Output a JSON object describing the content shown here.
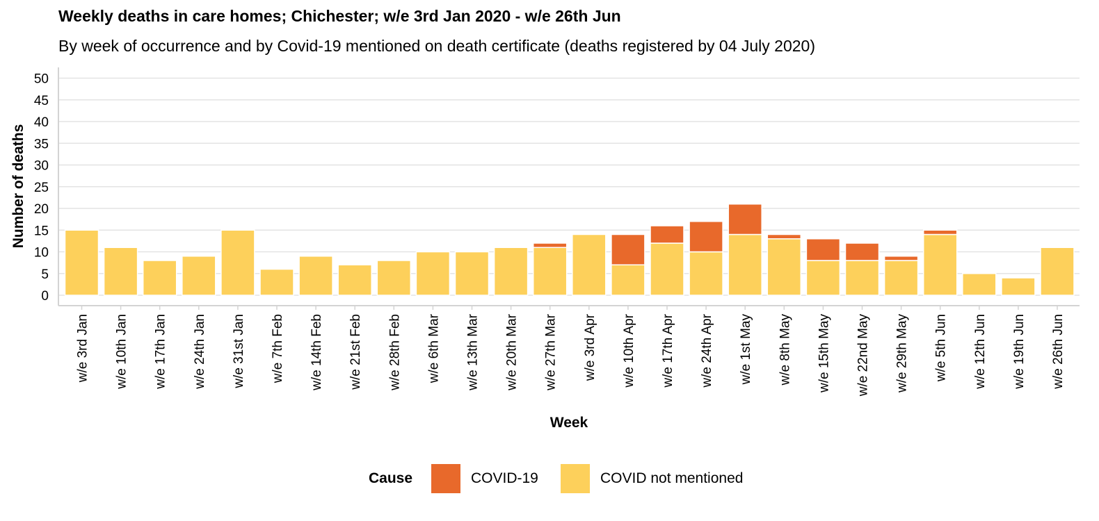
{
  "chart_data": {
    "type": "bar",
    "stacked": true,
    "title": "Weekly deaths in care homes; Chichester; w/e 3rd Jan 2020 - w/e 26th Jun",
    "subtitle": "By week of occurrence and by Covid-19 mentioned on death certificate (deaths registered by 04 July 2020)",
    "xlabel": "Week",
    "ylabel": "Number of deaths",
    "ylim": [
      0,
      50
    ],
    "yticks": [
      0,
      5,
      10,
      15,
      20,
      25,
      30,
      35,
      40,
      45,
      50
    ],
    "grid": "horizontal",
    "legend_position": "bottom",
    "legend_title": "Cause",
    "categories": [
      "w/e 3rd Jan",
      "w/e 10th Jan",
      "w/e 17th Jan",
      "w/e 24th Jan",
      "w/e 31st Jan",
      "w/e 7th Feb",
      "w/e 14th Feb",
      "w/e 21st Feb",
      "w/e 28th Feb",
      "w/e 6th Mar",
      "w/e 13th Mar",
      "w/e 20th Mar",
      "w/e 27th Mar",
      "w/e 3rd Apr",
      "w/e 10th Apr",
      "w/e 17th Apr",
      "w/e 24th Apr",
      "w/e 1st May",
      "w/e 8th May",
      "w/e 15th May",
      "w/e 22nd May",
      "w/e 29th May",
      "w/e 5th Jun",
      "w/e 12th Jun",
      "w/e 19th Jun",
      "w/e 26th Jun"
    ],
    "series": [
      {
        "name": "COVID not mentioned",
        "color": "#FDD05B",
        "values": [
          15,
          11,
          8,
          9,
          15,
          6,
          9,
          7,
          8,
          10,
          10,
          11,
          11,
          14,
          7,
          12,
          10,
          14,
          13,
          8,
          8,
          8,
          14,
          5,
          4,
          11
        ]
      },
      {
        "name": "COVID-19",
        "color": "#E8692B",
        "values": [
          0,
          0,
          0,
          0,
          0,
          0,
          0,
          0,
          0,
          0,
          0,
          0,
          1,
          0,
          7,
          4,
          7,
          7,
          1,
          5,
          4,
          1,
          1,
          0,
          0,
          0
        ]
      }
    ],
    "legend_order": [
      "COVID-19",
      "COVID not mentioned"
    ]
  }
}
